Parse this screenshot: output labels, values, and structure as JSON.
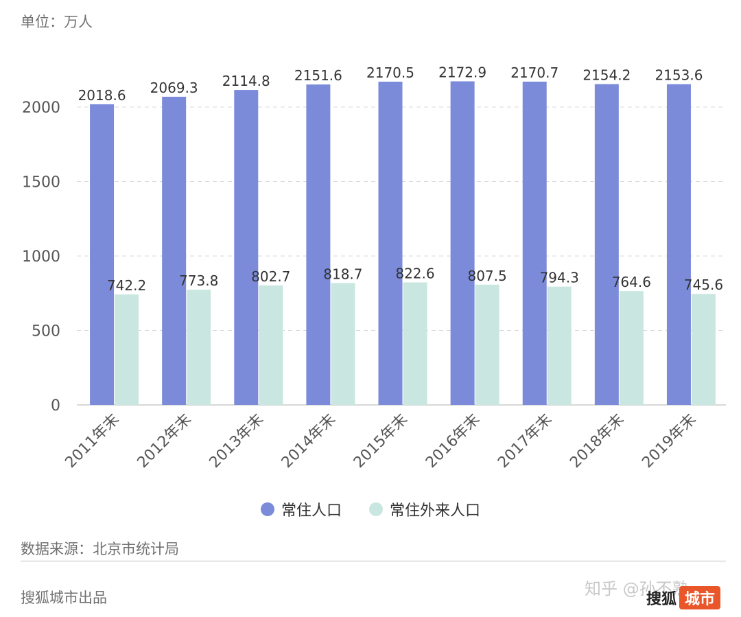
{
  "unit": "单位：万人",
  "source": "数据来源：北京市统计局",
  "producer": "搜狐城市出品",
  "watermark": "知乎 @孙不熟",
  "brand": {
    "part1": "搜狐",
    "part2": "城市"
  },
  "colors": {
    "resident": "#7b8bd9",
    "migrant": "#c9e7e0",
    "grid": "#d9d9d9",
    "axis": "#cccccc"
  },
  "chart_data": {
    "type": "bar",
    "categories": [
      "2011年末",
      "2012年末",
      "2013年末",
      "2014年末",
      "2015年末",
      "2016年末",
      "2017年末",
      "2018年末",
      "2019年末"
    ],
    "series": [
      {
        "name": "常住人口",
        "values": [
          2018.6,
          2069.3,
          2114.8,
          2151.6,
          2170.5,
          2172.9,
          2170.7,
          2154.2,
          2153.6
        ]
      },
      {
        "name": "常住外来人口",
        "values": [
          742.2,
          773.8,
          802.7,
          818.7,
          822.6,
          807.5,
          794.3,
          764.6,
          745.6
        ]
      }
    ],
    "y_ticks": [
      0,
      500,
      1000,
      1500,
      2000
    ],
    "ylim": [
      0,
      2000
    ],
    "grid": true,
    "legend_position": "bottom"
  }
}
